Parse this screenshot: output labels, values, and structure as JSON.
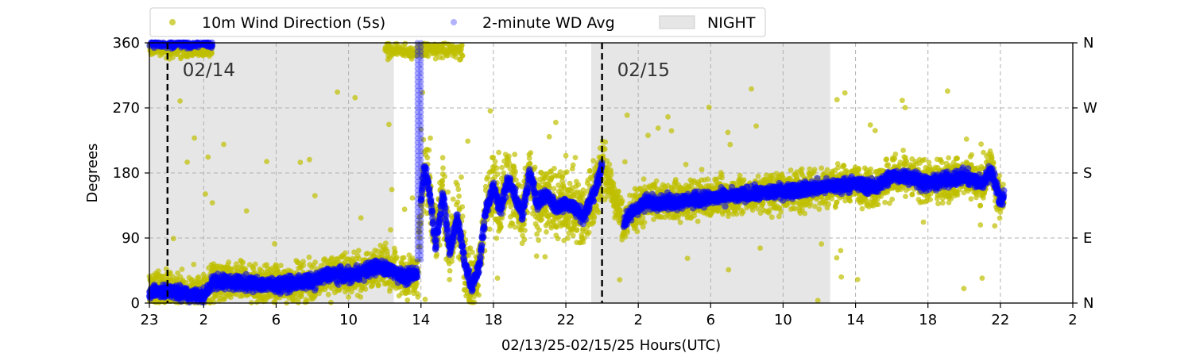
{
  "chart_data": {
    "type": "scatter",
    "title": "",
    "xlabel": "02/13/25-02/15/25  Hours(UTC)",
    "ylabel": "Degrees",
    "x_range_hours": [
      23,
      74
    ],
    "ylim": [
      0,
      360
    ],
    "x_ticks": [
      {
        "h": 23,
        "label": "23"
      },
      {
        "h": 26,
        "label": "2"
      },
      {
        "h": 30,
        "label": "6"
      },
      {
        "h": 34,
        "label": "10"
      },
      {
        "h": 38,
        "label": "14"
      },
      {
        "h": 42,
        "label": "18"
      },
      {
        "h": 46,
        "label": "22"
      },
      {
        "h": 50,
        "label": "2"
      },
      {
        "h": 54,
        "label": "6"
      },
      {
        "h": 58,
        "label": "10"
      },
      {
        "h": 62,
        "label": "14"
      },
      {
        "h": 66,
        "label": "18"
      },
      {
        "h": 70,
        "label": "22"
      },
      {
        "h": 74,
        "label": "2"
      }
    ],
    "y_ticks": [
      {
        "v": 0,
        "label": "0"
      },
      {
        "v": 90,
        "label": "90"
      },
      {
        "v": 180,
        "label": "180"
      },
      {
        "v": 270,
        "label": "270"
      },
      {
        "v": 360,
        "label": "360"
      }
    ],
    "y_ticks_right": [
      {
        "v": 0,
        "label": "N"
      },
      {
        "v": 90,
        "label": "E"
      },
      {
        "v": 180,
        "label": "S"
      },
      {
        "v": 270,
        "label": "W"
      },
      {
        "v": 360,
        "label": "N"
      }
    ],
    "grid": true,
    "legend_position": "top-left",
    "legend": [
      {
        "label": "10m Wind Direction (5s)",
        "color": "#bfbf00",
        "kind": "marker"
      },
      {
        "label": "2-minute WD Avg",
        "color": "#0000ff",
        "kind": "marker"
      },
      {
        "label": "NIGHT",
        "color": "#e6e6e6",
        "kind": "patch"
      }
    ],
    "night_spans": [
      [
        23,
        36.5
      ],
      [
        47.4,
        60.6
      ]
    ],
    "day_markers": [
      {
        "h": 24,
        "label": "02/14"
      },
      {
        "h": 48,
        "label": "02/15"
      }
    ],
    "colors": {
      "wind5s": "#bfbf00",
      "avg2min": "#0000ff",
      "night": "#e6e6e6",
      "divider": "#000000",
      "grid": "#b0b0b0"
    },
    "series": [
      {
        "name": "2-minute WD Avg",
        "gap_hours": [
          [
            37.8,
            38.0
          ],
          [
            48.0,
            49.2
          ]
        ],
        "trend": [
          [
            23.0,
            15
          ],
          [
            24.0,
            18
          ],
          [
            25.0,
            12
          ],
          [
            26.0,
            10
          ],
          [
            26.5,
            30
          ],
          [
            28.0,
            28
          ],
          [
            30.0,
            25
          ],
          [
            32.0,
            30
          ],
          [
            33.0,
            40
          ],
          [
            34.0,
            38
          ],
          [
            35.0,
            45
          ],
          [
            35.5,
            50
          ],
          [
            36.5,
            45
          ],
          [
            37.0,
            35
          ],
          [
            37.8,
            40
          ],
          [
            38.0,
            140
          ],
          [
            38.2,
            190
          ],
          [
            38.5,
            150
          ],
          [
            38.8,
            80
          ],
          [
            39.2,
            150
          ],
          [
            39.6,
            70
          ],
          [
            40.0,
            120
          ],
          [
            40.4,
            60
          ],
          [
            40.8,
            20
          ],
          [
            41.2,
            50
          ],
          [
            41.6,
            130
          ],
          [
            42.0,
            160
          ],
          [
            42.4,
            130
          ],
          [
            42.8,
            170
          ],
          [
            43.2,
            150
          ],
          [
            43.6,
            120
          ],
          [
            44.0,
            180
          ],
          [
            44.4,
            140
          ],
          [
            45.0,
            150
          ],
          [
            45.5,
            130
          ],
          [
            46.0,
            140
          ],
          [
            46.5,
            130
          ],
          [
            47.0,
            120
          ],
          [
            47.5,
            150
          ],
          [
            47.8,
            170
          ],
          [
            48.0,
            195
          ],
          [
            49.2,
            110
          ],
          [
            49.8,
            130
          ],
          [
            50.5,
            140
          ],
          [
            52.0,
            140
          ],
          [
            54.0,
            145
          ],
          [
            56.0,
            150
          ],
          [
            58.0,
            155
          ],
          [
            60.0,
            160
          ],
          [
            62.0,
            165
          ],
          [
            63.0,
            160
          ],
          [
            64.0,
            175
          ],
          [
            65.0,
            175
          ],
          [
            66.0,
            165
          ],
          [
            67.0,
            170
          ],
          [
            68.0,
            175
          ],
          [
            69.0,
            165
          ],
          [
            69.5,
            185
          ],
          [
            70.0,
            140
          ],
          [
            70.2,
            150
          ]
        ]
      },
      {
        "name": "10m Wind Direction (5s)",
        "wrap_band": [
          [
            23.0,
            26.5
          ],
          [
            36.0,
            40.3
          ]
        ],
        "wrap_center": 350
      }
    ]
  }
}
